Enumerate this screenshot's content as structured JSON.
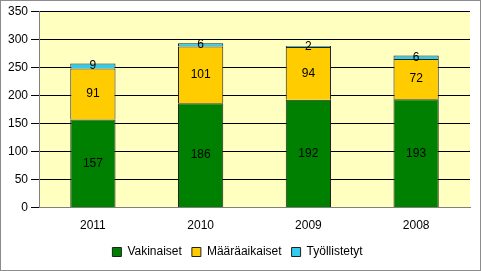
{
  "chart_data": {
    "type": "bar",
    "stacked": true,
    "categories": [
      "2011",
      "2010",
      "2009",
      "2008"
    ],
    "series": [
      {
        "name": "Vakinaiset",
        "color": "#008000",
        "values": [
          157,
          186,
          192,
          193
        ]
      },
      {
        "name": "Määräaikaiset",
        "color": "#FFCC00",
        "values": [
          91,
          101,
          94,
          72
        ]
      },
      {
        "name": "Työllistetyt",
        "color": "#33CCEE",
        "values": [
          9,
          6,
          2,
          6
        ]
      }
    ],
    "ylim": [
      0,
      350
    ],
    "yticks": [
      0,
      50,
      100,
      150,
      200,
      250,
      300,
      350
    ],
    "grid": true,
    "legend": "bottom",
    "data_labels": true
  }
}
